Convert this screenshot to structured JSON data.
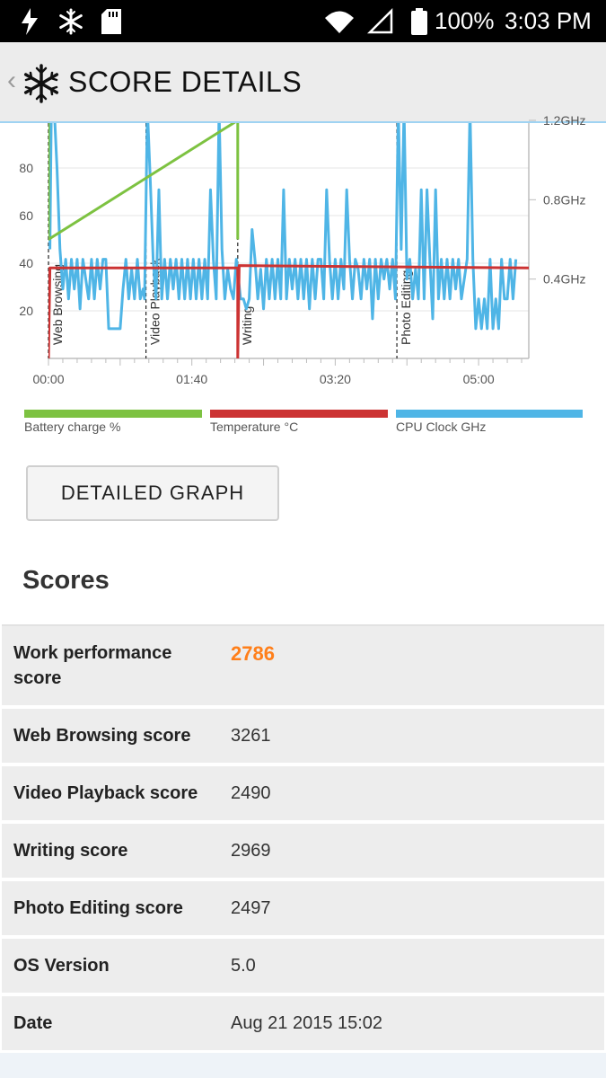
{
  "status_bar": {
    "battery_percent": "100%",
    "time": "3:03 PM",
    "icons": [
      "flash-icon",
      "snowflake-icon",
      "sd-card-icon",
      "wifi-icon",
      "cell-signal-icon",
      "battery-icon"
    ]
  },
  "app_bar": {
    "back_glyph": "‹",
    "icon": "snowflake-logo-icon",
    "title": "SCORE DETAILS"
  },
  "chart_data": {
    "type": "line",
    "x_ticks": [
      "00:00",
      "01:40",
      "03:20",
      "05:00"
    ],
    "x_tick_values": [
      0,
      100,
      200,
      300
    ],
    "xlim": [
      0,
      335
    ],
    "y_left_ticks": [
      "20",
      "40",
      "60",
      "80"
    ],
    "y_left_tick_values": [
      20,
      40,
      60,
      80
    ],
    "ylim_left": [
      0,
      100
    ],
    "y_right_ticks": [
      "0.4GHz",
      "0.8GHz",
      "1.2GHz"
    ],
    "y_right_tick_values": [
      0.4,
      0.8,
      1.2
    ],
    "ylim_right": [
      0,
      1.2
    ],
    "sections": [
      {
        "name": "Web Browsing",
        "start": 0
      },
      {
        "name": "Video Playback",
        "start": 68
      },
      {
        "name": "Writing",
        "start": 132
      },
      {
        "name": "Photo Editing",
        "start": 243
      }
    ],
    "legend": [
      {
        "name": "Battery charge %",
        "color": "#7dc241"
      },
      {
        "name": "Temperature °C",
        "color": "#cc3333"
      },
      {
        "name": "CPU Clock GHz",
        "color": "#4fb5e6"
      }
    ],
    "series": [
      {
        "name": "Battery charge %",
        "color": "#7dc241",
        "points": [
          [
            0,
            100
          ],
          [
            0,
            50
          ],
          [
            132,
            100
          ],
          [
            132,
            50
          ]
        ]
      },
      {
        "name": "Temperature °C",
        "color": "#cc3333",
        "points": [
          [
            0,
            0
          ],
          [
            1,
            38
          ],
          [
            132,
            38
          ],
          [
            132,
            0
          ],
          [
            133,
            39
          ],
          [
            335,
            38
          ]
        ]
      },
      {
        "name": "CPU Clock GHz",
        "color": "#4fb5e6",
        "points": [
          [
            1,
            0.55
          ],
          [
            2,
            1.26
          ],
          [
            4,
            1.26
          ],
          [
            6,
            0.95
          ],
          [
            8,
            0.55
          ],
          [
            10,
            0.35
          ],
          [
            12,
            0.5
          ],
          [
            14,
            0.3
          ],
          [
            16,
            0.5
          ],
          [
            18,
            0.35
          ],
          [
            20,
            0.5
          ],
          [
            22,
            0.25
          ],
          [
            24,
            0.5
          ],
          [
            26,
            0.4
          ],
          [
            28,
            0.3
          ],
          [
            30,
            0.5
          ],
          [
            32,
            0.3
          ],
          [
            34,
            0.5
          ],
          [
            36,
            0.35
          ],
          [
            38,
            0.5
          ],
          [
            40,
            0.5
          ],
          [
            42,
            0.15
          ],
          [
            46,
            0.15
          ],
          [
            50,
            0.15
          ],
          [
            52,
            0.35
          ],
          [
            54,
            0.5
          ],
          [
            56,
            0.3
          ],
          [
            58,
            0.45
          ],
          [
            60,
            0.3
          ],
          [
            62,
            0.5
          ],
          [
            64,
            0.3
          ],
          [
            66,
            0.35
          ],
          [
            67,
            0.3
          ],
          [
            69,
            1.26
          ],
          [
            71,
            0.9
          ],
          [
            73,
            0.5
          ],
          [
            75,
            0.3
          ],
          [
            77,
            0.85
          ],
          [
            79,
            0.3
          ],
          [
            81,
            0.5
          ],
          [
            83,
            0.3
          ],
          [
            85,
            0.5
          ],
          [
            87,
            0.35
          ],
          [
            89,
            0.5
          ],
          [
            91,
            0.3
          ],
          [
            93,
            0.5
          ],
          [
            95,
            0.3
          ],
          [
            97,
            0.5
          ],
          [
            99,
            0.3
          ],
          [
            101,
            0.5
          ],
          [
            103,
            0.3
          ],
          [
            105,
            0.5
          ],
          [
            107,
            0.3
          ],
          [
            109,
            0.5
          ],
          [
            111,
            0.3
          ],
          [
            113,
            0.85
          ],
          [
            115,
            0.5
          ],
          [
            117,
            0.3
          ],
          [
            119,
            1.26
          ],
          [
            121,
            0.55
          ],
          [
            123,
            0.3
          ],
          [
            125,
            0.45
          ],
          [
            127,
            0.35
          ],
          [
            129,
            0.3
          ],
          [
            131,
            0.5
          ],
          [
            134,
            0.3
          ],
          [
            136,
            0.3
          ],
          [
            138,
            0.25
          ],
          [
            140,
            0.3
          ],
          [
            142,
            0.65
          ],
          [
            144,
            0.5
          ],
          [
            146,
            0.3
          ],
          [
            148,
            0.45
          ],
          [
            150,
            0.25
          ],
          [
            152,
            0.5
          ],
          [
            154,
            0.3
          ],
          [
            156,
            0.5
          ],
          [
            158,
            0.3
          ],
          [
            160,
            0.5
          ],
          [
            162,
            0.3
          ],
          [
            164,
            0.85
          ],
          [
            166,
            0.3
          ],
          [
            168,
            0.5
          ],
          [
            170,
            0.35
          ],
          [
            172,
            0.5
          ],
          [
            174,
            0.3
          ],
          [
            176,
            0.5
          ],
          [
            178,
            0.3
          ],
          [
            180,
            0.5
          ],
          [
            182,
            0.25
          ],
          [
            184,
            0.5
          ],
          [
            186,
            0.3
          ],
          [
            188,
            0.5
          ],
          [
            190,
            0.5
          ],
          [
            192,
            0.3
          ],
          [
            194,
            0.85
          ],
          [
            196,
            0.5
          ],
          [
            198,
            0.3
          ],
          [
            200,
            0.5
          ],
          [
            202,
            0.3
          ],
          [
            204,
            0.5
          ],
          [
            206,
            0.35
          ],
          [
            208,
            0.85
          ],
          [
            210,
            0.5
          ],
          [
            212,
            0.3
          ],
          [
            214,
            0.5
          ],
          [
            216,
            0.45
          ],
          [
            218,
            0.3
          ],
          [
            220,
            0.5
          ],
          [
            222,
            0.35
          ],
          [
            224,
            0.5
          ],
          [
            226,
            0.2
          ],
          [
            228,
            0.5
          ],
          [
            230,
            0.3
          ],
          [
            232,
            0.5
          ],
          [
            234,
            0.4
          ],
          [
            236,
            0.5
          ],
          [
            238,
            0.35
          ],
          [
            240,
            0.5
          ],
          [
            242,
            0.3
          ],
          [
            244,
            1.26
          ],
          [
            246,
            0.55
          ],
          [
            248,
            1.26
          ],
          [
            250,
            0.4
          ],
          [
            252,
            0.5
          ],
          [
            254,
            0.3
          ],
          [
            256,
            0.45
          ],
          [
            258,
            0.3
          ],
          [
            260,
            0.85
          ],
          [
            262,
            0.3
          ],
          [
            264,
            0.85
          ],
          [
            266,
            0.5
          ],
          [
            268,
            0.2
          ],
          [
            270,
            0.85
          ],
          [
            272,
            0.3
          ],
          [
            274,
            0.5
          ],
          [
            276,
            0.3
          ],
          [
            278,
            0.5
          ],
          [
            280,
            0.3
          ],
          [
            282,
            0.5
          ],
          [
            284,
            0.35
          ],
          [
            286,
            0.5
          ],
          [
            288,
            0.3
          ],
          [
            290,
            0.4
          ],
          [
            292,
            0.5
          ],
          [
            294,
            1.26
          ],
          [
            296,
            0.5
          ],
          [
            298,
            0.15
          ],
          [
            300,
            0.3
          ],
          [
            302,
            0.15
          ],
          [
            304,
            0.3
          ],
          [
            306,
            0.15
          ],
          [
            308,
            0.5
          ],
          [
            310,
            0.15
          ],
          [
            312,
            0.3
          ],
          [
            314,
            0.15
          ],
          [
            316,
            0.5
          ],
          [
            318,
            0.3
          ],
          [
            320,
            0.3
          ],
          [
            322,
            0.5
          ],
          [
            324,
            0.3
          ],
          [
            326,
            0.5
          ]
        ]
      }
    ]
  },
  "detail_button": {
    "label": "DETAILED GRAPH"
  },
  "scores": {
    "title": "Scores",
    "rows": [
      {
        "label": "Work performance score",
        "value": "2786",
        "highlight": true
      },
      {
        "label": "Web Browsing score",
        "value": "3261"
      },
      {
        "label": "Video Playback score",
        "value": "2490"
      },
      {
        "label": "Writing score",
        "value": "2969"
      },
      {
        "label": "Photo Editing score",
        "value": "2497"
      },
      {
        "label": "OS Version",
        "value": "5.0"
      },
      {
        "label": "Date",
        "value": "Aug 21 2015 15:02"
      }
    ]
  }
}
